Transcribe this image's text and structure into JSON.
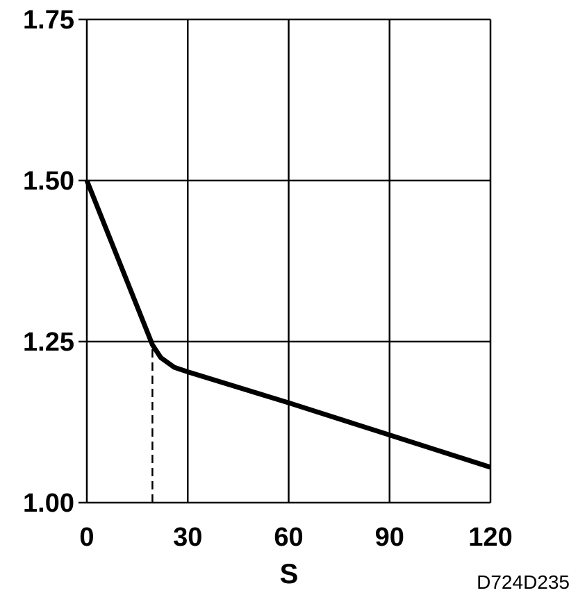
{
  "chart_data": {
    "type": "line",
    "xlabel": "S",
    "ylabel": "",
    "xlim": [
      0,
      120
    ],
    "ylim": [
      1.0,
      1.75
    ],
    "x_ticks": [
      0,
      30,
      60,
      90,
      120
    ],
    "x_tick_labels": [
      "0",
      "30",
      "60",
      "90",
      "120"
    ],
    "y_ticks": [
      1.0,
      1.25,
      1.5,
      1.75
    ],
    "y_tick_labels": [
      "1.00",
      "1.25",
      "1.50",
      "1.75"
    ],
    "grid": true,
    "series": [
      {
        "x": [
          0,
          19.5,
          22,
          26,
          30,
          60,
          90,
          120
        ],
        "y": [
          1.5,
          1.245,
          1.225,
          1.21,
          1.203,
          1.155,
          1.105,
          1.055
        ],
        "color": "#000000"
      }
    ],
    "reference_lines": [
      {
        "style": "dashed",
        "x": [
          19.5,
          19.5
        ],
        "y": [
          1.0,
          1.245
        ]
      }
    ],
    "figure_id": "D724D235"
  }
}
